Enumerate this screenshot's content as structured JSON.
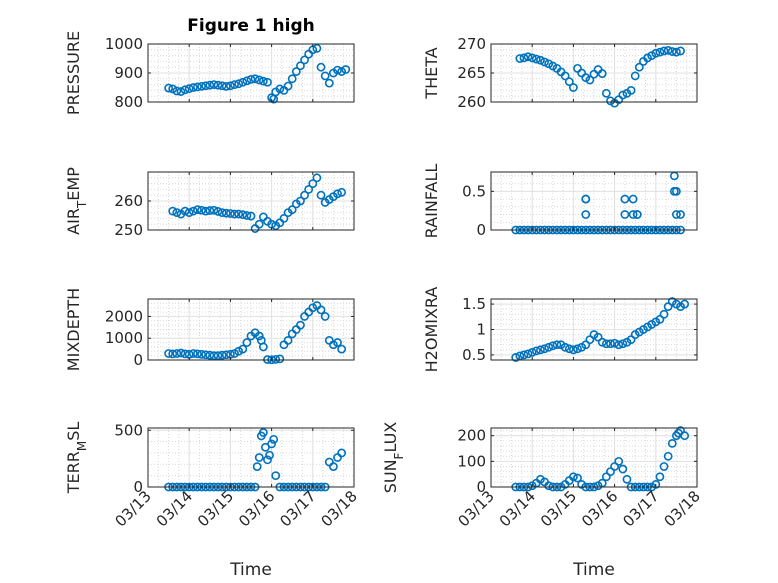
{
  "figure": {
    "title": "Figure 1 high",
    "xlabel": "Time",
    "x_ticks": [
      "03/13",
      "03/14",
      "03/15",
      "03/16",
      "03/17",
      "03/18"
    ],
    "marker_color": "#0072BD",
    "grid_color": "#d9d9d9",
    "axes_color": "#262626"
  },
  "chart_data": [
    {
      "type": "scatter",
      "name": "PRESSURE",
      "ylabel": "PRESSURE",
      "ylim": [
        800,
        1000
      ],
      "yticks": [
        "800",
        "900",
        "1000"
      ],
      "ytick_values": [
        800,
        900,
        1000
      ],
      "xlim": [
        0,
        5
      ],
      "xticks": [
        "03/13",
        "03/14",
        "03/15",
        "03/16",
        "03/17",
        "03/18"
      ],
      "grid": true,
      "x": [
        0.5,
        0.6,
        0.7,
        0.8,
        0.9,
        1.0,
        1.1,
        1.2,
        1.3,
        1.4,
        1.5,
        1.6,
        1.7,
        1.8,
        1.9,
        2.0,
        2.1,
        2.2,
        2.3,
        2.4,
        2.5,
        2.6,
        2.7,
        2.8,
        2.9,
        3.0,
        3.05,
        3.1,
        3.2,
        3.3,
        3.4,
        3.5,
        3.6,
        3.7,
        3.8,
        3.9,
        4.0,
        4.1,
        4.2,
        4.3,
        4.4,
        4.5,
        4.6,
        4.7,
        4.8
      ],
      "y": [
        848,
        845,
        838,
        836,
        842,
        846,
        850,
        852,
        854,
        856,
        858,
        860,
        858,
        856,
        854,
        856,
        860,
        863,
        868,
        873,
        878,
        880,
        876,
        872,
        868,
        815,
        810,
        835,
        845,
        840,
        855,
        880,
        905,
        925,
        945,
        965,
        980,
        985,
        920,
        890,
        865,
        900,
        910,
        905,
        912
      ]
    },
    {
      "type": "scatter",
      "name": "THETA",
      "ylabel": "THETA",
      "ylim": [
        260,
        270
      ],
      "yticks": [
        "260",
        "265",
        "270"
      ],
      "ytick_values": [
        260,
        265,
        270
      ],
      "xlim": [
        0,
        5
      ],
      "xticks": [
        "03/13",
        "03/14",
        "03/15",
        "03/16",
        "03/17",
        "03/18"
      ],
      "grid": true,
      "x": [
        0.7,
        0.8,
        0.9,
        1.0,
        1.1,
        1.2,
        1.3,
        1.4,
        1.5,
        1.6,
        1.7,
        1.8,
        1.9,
        2.0,
        2.1,
        2.2,
        2.3,
        2.4,
        2.5,
        2.6,
        2.7,
        2.8,
        2.9,
        3.0,
        3.1,
        3.2,
        3.3,
        3.4,
        3.5,
        3.6,
        3.7,
        3.8,
        3.9,
        4.0,
        4.1,
        4.2,
        4.3,
        4.4,
        4.5,
        4.6
      ],
      "y": [
        267.5,
        267.6,
        267.8,
        267.6,
        267.4,
        267.2,
        266.9,
        266.6,
        266.2,
        265.8,
        265.2,
        264.5,
        263.5,
        262.5,
        265.8,
        265.0,
        264.2,
        263.8,
        264.8,
        265.6,
        264.9,
        261.5,
        260.2,
        259.8,
        260.4,
        261.2,
        261.5,
        262.0,
        264.5,
        266.0,
        267.0,
        267.6,
        268.0,
        268.4,
        268.6,
        268.8,
        268.9,
        268.7,
        268.6,
        268.8
      ]
    },
    {
      "type": "scatter",
      "name": "AIR_TEMP",
      "ylabel": "AIR_TEMP",
      "ylim": [
        250,
        270
      ],
      "yticks": [
        "250",
        "260"
      ],
      "ytick_values": [
        250,
        260
      ],
      "xlim": [
        0,
        5
      ],
      "xticks": [
        "03/13",
        "03/14",
        "03/15",
        "03/16",
        "03/17",
        "03/18"
      ],
      "grid": true,
      "x": [
        0.6,
        0.7,
        0.8,
        0.9,
        1.0,
        1.1,
        1.2,
        1.3,
        1.4,
        1.5,
        1.6,
        1.7,
        1.8,
        1.9,
        2.0,
        2.1,
        2.2,
        2.3,
        2.4,
        2.5,
        2.6,
        2.7,
        2.8,
        2.9,
        3.0,
        3.1,
        3.2,
        3.3,
        3.4,
        3.5,
        3.6,
        3.7,
        3.8,
        3.9,
        4.0,
        4.1,
        4.2,
        4.3,
        4.4,
        4.5,
        4.6,
        4.7
      ],
      "y": [
        256.5,
        256.0,
        255.5,
        256.5,
        256.0,
        256.5,
        257.0,
        256.8,
        256.5,
        256.7,
        256.8,
        256.4,
        256.0,
        255.8,
        255.7,
        255.5,
        255.5,
        255.3,
        255.0,
        254.8,
        250.5,
        252.0,
        254.5,
        253.0,
        252.0,
        251.5,
        252.5,
        254.0,
        256.0,
        257.0,
        259.0,
        260.0,
        262.0,
        264.0,
        266.0,
        268.0,
        262.0,
        259.5,
        260.5,
        261.5,
        262.5,
        263.0
      ]
    },
    {
      "type": "scatter",
      "name": "RAINFALL",
      "ylabel": "RAINFALL",
      "ylim": [
        0,
        0.75
      ],
      "yticks": [
        "0",
        "0.5"
      ],
      "ytick_values": [
        0,
        0.5
      ],
      "xlim": [
        0,
        5
      ],
      "xticks": [
        "03/13",
        "03/14",
        "03/15",
        "03/16",
        "03/17",
        "03/18"
      ],
      "grid": true,
      "x": [
        0.6,
        0.7,
        0.8,
        0.9,
        1.0,
        1.1,
        1.2,
        1.3,
        1.4,
        1.5,
        1.6,
        1.7,
        1.8,
        1.9,
        2.0,
        2.1,
        2.2,
        2.3,
        2.4,
        2.5,
        2.6,
        2.7,
        2.8,
        2.9,
        3.0,
        3.1,
        3.2,
        3.3,
        3.4,
        3.5,
        3.6,
        3.7,
        3.8,
        3.9,
        4.0,
        4.1,
        4.2,
        4.3,
        4.4,
        4.5,
        4.6,
        2.3,
        2.3,
        2.3,
        3.25,
        3.25,
        3.45,
        3.45,
        3.55,
        3.55,
        4.45,
        4.45,
        4.5,
        4.5,
        4.6
      ],
      "y": [
        0,
        0,
        0,
        0,
        0,
        0,
        0,
        0,
        0,
        0,
        0,
        0,
        0,
        0,
        0,
        0,
        0,
        0,
        0,
        0,
        0,
        0,
        0,
        0,
        0,
        0,
        0,
        0,
        0,
        0,
        0,
        0,
        0,
        0,
        0,
        0,
        0,
        0,
        0,
        0,
        0,
        0.4,
        0.2,
        0.4,
        0.4,
        0.2,
        0.4,
        0.2,
        0.2,
        0.2,
        0.7,
        0.5,
        0.2,
        0.5,
        0.2
      ]
    },
    {
      "type": "scatter",
      "name": "MIXDEPTH",
      "ylabel": "MIXDEPTH",
      "ylim": [
        0,
        2800
      ],
      "yticks": [
        "0",
        "1000",
        "2000"
      ],
      "ytick_values": [
        0,
        1000,
        2000
      ],
      "xlim": [
        0,
        5
      ],
      "xticks": [
        "03/13",
        "03/14",
        "03/15",
        "03/16",
        "03/17",
        "03/18"
      ],
      "grid": true,
      "x": [
        0.5,
        0.6,
        0.7,
        0.8,
        0.9,
        1.0,
        1.1,
        1.2,
        1.3,
        1.4,
        1.5,
        1.6,
        1.7,
        1.8,
        1.9,
        2.0,
        2.1,
        2.2,
        2.3,
        2.4,
        2.5,
        2.6,
        2.7,
        2.75,
        2.8,
        2.9,
        3.0,
        3.1,
        3.2,
        3.3,
        3.4,
        3.5,
        3.6,
        3.7,
        3.8,
        3.9,
        4.0,
        4.1,
        4.2,
        4.3,
        4.4,
        4.5,
        4.6,
        4.7
      ],
      "y": [
        300,
        280,
        300,
        320,
        280,
        260,
        300,
        280,
        260,
        240,
        220,
        200,
        200,
        220,
        240,
        260,
        300,
        400,
        500,
        800,
        1100,
        1250,
        1100,
        900,
        600,
        20,
        10,
        30,
        50,
        700,
        900,
        1200,
        1400,
        1600,
        2000,
        2200,
        2400,
        2500,
        2300,
        2000,
        900,
        700,
        800,
        500
      ]
    },
    {
      "type": "scatter",
      "name": "H2OMIXRA",
      "ylabel": "H2OMIXRA",
      "ylim": [
        0.4,
        1.6
      ],
      "yticks": [
        "0.5",
        "1",
        "1.5"
      ],
      "ytick_values": [
        0.5,
        1,
        1.5
      ],
      "xlim": [
        0,
        5
      ],
      "xticks": [
        "03/13",
        "03/14",
        "03/15",
        "03/16",
        "03/17",
        "03/18"
      ],
      "grid": true,
      "x": [
        0.6,
        0.7,
        0.8,
        0.9,
        1.0,
        1.1,
        1.2,
        1.3,
        1.4,
        1.5,
        1.6,
        1.7,
        1.8,
        1.9,
        2.0,
        2.1,
        2.2,
        2.3,
        2.4,
        2.5,
        2.6,
        2.7,
        2.8,
        2.9,
        3.0,
        3.1,
        3.2,
        3.3,
        3.4,
        3.5,
        3.6,
        3.7,
        3.8,
        3.9,
        4.0,
        4.1,
        4.2,
        4.3,
        4.4,
        4.5,
        4.6,
        4.7
      ],
      "y": [
        0.45,
        0.48,
        0.5,
        0.52,
        0.55,
        0.58,
        0.6,
        0.62,
        0.65,
        0.68,
        0.7,
        0.7,
        0.65,
        0.62,
        0.6,
        0.62,
        0.65,
        0.7,
        0.8,
        0.9,
        0.85,
        0.75,
        0.72,
        0.72,
        0.73,
        0.7,
        0.72,
        0.75,
        0.8,
        0.9,
        0.95,
        1.0,
        1.05,
        1.1,
        1.15,
        1.2,
        1.3,
        1.45,
        1.55,
        1.5,
        1.45,
        1.5
      ]
    },
    {
      "type": "scatter",
      "name": "TERR_MSL",
      "ylabel": "TERR_MSL",
      "ylim": [
        0,
        520
      ],
      "yticks": [
        "0",
        "500"
      ],
      "ytick_values": [
        0,
        500
      ],
      "xlim": [
        0,
        5
      ],
      "xticks": [
        "03/13",
        "03/14",
        "03/15",
        "03/16",
        "03/17",
        "03/18"
      ],
      "grid": true,
      "x": [
        0.5,
        0.6,
        0.7,
        0.8,
        0.9,
        1.0,
        1.1,
        1.2,
        1.3,
        1.4,
        1.5,
        1.6,
        1.7,
        1.8,
        1.9,
        2.0,
        2.1,
        2.2,
        2.3,
        2.4,
        2.5,
        2.6,
        2.65,
        2.7,
        2.75,
        2.8,
        2.85,
        2.9,
        2.95,
        3.0,
        3.05,
        3.1,
        3.2,
        3.3,
        3.4,
        3.5,
        3.6,
        3.7,
        3.8,
        3.9,
        4.0,
        4.1,
        4.2,
        4.3,
        4.4,
        4.5,
        4.6,
        4.7
      ],
      "y": [
        0,
        0,
        0,
        0,
        0,
        0,
        0,
        0,
        0,
        0,
        0,
        0,
        0,
        0,
        0,
        0,
        0,
        0,
        0,
        0,
        0,
        0,
        180,
        260,
        450,
        480,
        350,
        240,
        280,
        380,
        420,
        100,
        0,
        0,
        0,
        0,
        0,
        0,
        0,
        0,
        0,
        0,
        0,
        0,
        220,
        180,
        260,
        300
      ]
    },
    {
      "type": "scatter",
      "name": "SUN_FLUX",
      "ylabel": "SUN_FLUX",
      "ylim": [
        0,
        230
      ],
      "yticks": [
        "0",
        "100",
        "200"
      ],
      "ytick_values": [
        0,
        100,
        200
      ],
      "xlim": [
        0,
        5
      ],
      "xticks": [
        "03/13",
        "03/14",
        "03/15",
        "03/16",
        "03/17",
        "03/18"
      ],
      "grid": true,
      "x": [
        0.6,
        0.7,
        0.8,
        0.9,
        1.0,
        1.1,
        1.2,
        1.3,
        1.4,
        1.5,
        1.6,
        1.7,
        1.8,
        1.9,
        2.0,
        2.1,
        2.2,
        2.3,
        2.4,
        2.5,
        2.6,
        2.7,
        2.8,
        2.9,
        3.0,
        3.1,
        3.2,
        3.3,
        3.4,
        3.5,
        3.6,
        3.7,
        3.8,
        3.9,
        4.0,
        4.1,
        4.2,
        4.3,
        4.4,
        4.5,
        4.55,
        4.6,
        4.7
      ],
      "y": [
        0,
        0,
        0,
        0,
        5,
        15,
        30,
        20,
        5,
        0,
        0,
        0,
        10,
        25,
        40,
        35,
        10,
        0,
        0,
        0,
        5,
        15,
        40,
        60,
        80,
        100,
        70,
        30,
        0,
        0,
        0,
        0,
        0,
        0,
        10,
        40,
        80,
        120,
        170,
        200,
        210,
        220,
        200
      ]
    }
  ]
}
